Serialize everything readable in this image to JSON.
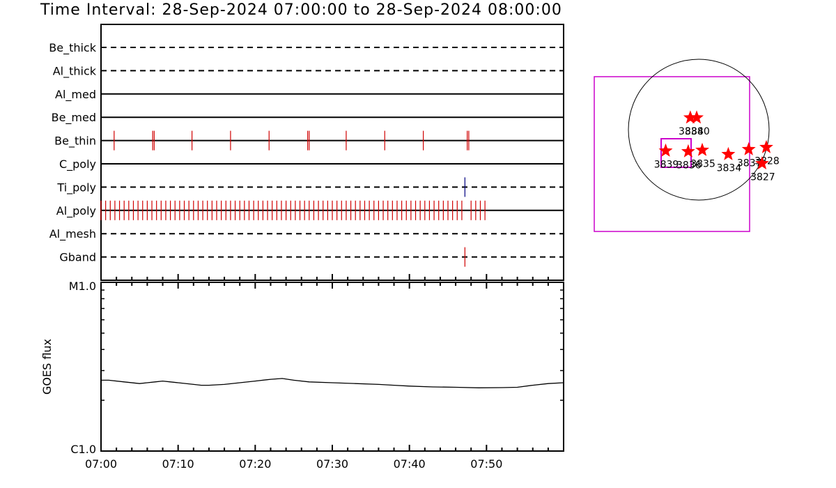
{
  "title": "Time Interval: 28-Sep-2024 07:00:00 to 28-Sep-2024 08:00:00",
  "colors": {
    "event": "#d00000",
    "ti_event": "#000080",
    "frame": "#cc00cc",
    "star": "#ff0000"
  },
  "chart_data": [
    {
      "type": "event-timeline",
      "time_range": [
        "07:00",
        "08:00"
      ],
      "channels": [
        {
          "name": "Be_thick",
          "style": "dashed",
          "events": []
        },
        {
          "name": "Al_thick",
          "style": "dashed",
          "events": []
        },
        {
          "name": "Al_med",
          "style": "solid",
          "events": []
        },
        {
          "name": "Be_med",
          "style": "solid",
          "events": []
        },
        {
          "name": "Be_thin",
          "style": "solid",
          "events": [
            1.7,
            6.7,
            6.9,
            11.8,
            16.8,
            21.8,
            26.8,
            27.0,
            31.8,
            36.8,
            41.8,
            47.5,
            47.7
          ]
        },
        {
          "name": "C_poly",
          "style": "solid",
          "events": []
        },
        {
          "name": "Ti_poly",
          "style": "dashed",
          "events": [
            47.2
          ]
        },
        {
          "name": "Al_poly",
          "style": "solid",
          "event_span": [
            0.0,
            50.3
          ],
          "event_spacing": 0.6,
          "event_gaps": [
            [
              47.2,
              47.6
            ]
          ]
        },
        {
          "name": "Al_mesh",
          "style": "dashed",
          "events": []
        },
        {
          "name": "Gband",
          "style": "dashed",
          "events": [
            47.2
          ]
        }
      ]
    },
    {
      "type": "line",
      "ylabel": "GOES flux",
      "ytick_labels": [
        "M1.0",
        "C1.0"
      ],
      "ylim": [
        "C1.0",
        "M1.0"
      ],
      "yscale": "log",
      "xtick_labels": [
        "07:00",
        "07:10",
        "07:20",
        "07:30",
        "07:40",
        "07:50"
      ],
      "x": [
        0,
        1,
        3,
        5,
        6,
        7,
        8,
        9,
        10,
        12,
        13,
        14,
        16,
        18,
        20,
        22,
        23.5,
        25,
        27,
        30,
        33,
        36,
        38,
        40,
        43,
        46,
        49,
        52,
        54,
        56,
        58,
        60
      ],
      "y": [
        0.42,
        0.42,
        0.41,
        0.4,
        0.405,
        0.41,
        0.415,
        0.41,
        0.405,
        0.395,
        0.39,
        0.39,
        0.395,
        0.405,
        0.415,
        0.425,
        0.43,
        0.42,
        0.41,
        0.405,
        0.4,
        0.395,
        0.39,
        0.385,
        0.38,
        0.378,
        0.375,
        0.376,
        0.378,
        0.39,
        0.4,
        0.405
      ]
    },
    {
      "type": "scatter",
      "description_label": "active-regions",
      "points": [
        {
          "label": "3838",
          "x": -0.12,
          "y": 0.17
        },
        {
          "label": "3840",
          "x": -0.03,
          "y": 0.17
        },
        {
          "label": "3839",
          "x": -0.47,
          "y": -0.3
        },
        {
          "label": "3836",
          "x": -0.15,
          "y": -0.31
        },
        {
          "label": "3835",
          "x": 0.05,
          "y": -0.29
        },
        {
          "label": "3834",
          "x": 0.42,
          "y": -0.35
        },
        {
          "label": "3837",
          "x": 0.71,
          "y": -0.28
        },
        {
          "label": "3828",
          "x": 0.96,
          "y": -0.25
        },
        {
          "label": "3827",
          "x": 0.9,
          "y": -0.48
        }
      ]
    }
  ]
}
